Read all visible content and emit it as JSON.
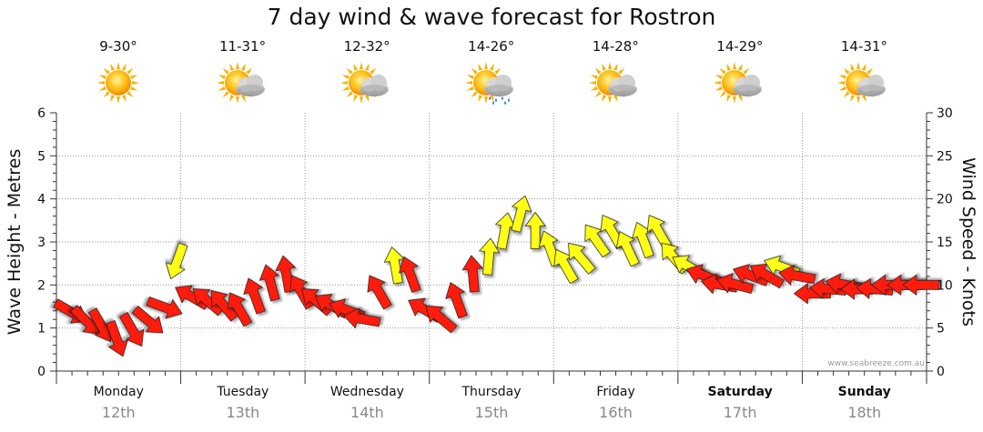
{
  "chart_data": {
    "type": "line",
    "title": "7 day wind & wave forecast for Rostron",
    "ylabel_left": "Wave Height - Metres",
    "ylabel_right": "Wind Speed - Knots",
    "ylim_left": [
      0,
      6
    ],
    "ylim_right": [
      0,
      30
    ],
    "yticks_left": [
      "0",
      "1",
      "2",
      "3",
      "4",
      "5",
      "6"
    ],
    "yticks_right": [
      "0",
      "5",
      "10",
      "15",
      "20",
      "25",
      "30"
    ],
    "grid": true,
    "watermark": "www.seabreeze.com.au",
    "days": [
      {
        "name": "Monday",
        "date": "12th",
        "temp": "9-30°",
        "weather": "sunny-icon",
        "bold": false
      },
      {
        "name": "Tuesday",
        "date": "13th",
        "temp": "11-31°",
        "weather": "partly-cloudy-icon",
        "bold": false
      },
      {
        "name": "Wednesday",
        "date": "14th",
        "temp": "12-32°",
        "weather": "partly-cloudy-icon",
        "bold": false
      },
      {
        "name": "Thursday",
        "date": "15th",
        "temp": "14-26°",
        "weather": "rain-icon",
        "bold": false
      },
      {
        "name": "Friday",
        "date": "16th",
        "temp": "14-28°",
        "weather": "partly-cloudy-icon",
        "bold": false
      },
      {
        "name": "Saturday",
        "date": "17th",
        "temp": "14-29°",
        "weather": "partly-cloudy-icon",
        "bold": true
      },
      {
        "name": "Sunday",
        "date": "18th",
        "temp": "14-31°",
        "weather": "partly-cloudy-icon",
        "bold": true
      }
    ],
    "wind_series": {
      "name": "Wind Speed",
      "x_hours": [
        0,
        3,
        6,
        9,
        12,
        15,
        18,
        21,
        24,
        27,
        30,
        33,
        36,
        39,
        42,
        45,
        48,
        51,
        54,
        57,
        60,
        63,
        66,
        69,
        72,
        75,
        78,
        81,
        84,
        87,
        90,
        93,
        96,
        99,
        102,
        105,
        108,
        111,
        114,
        117,
        120,
        123,
        126,
        129,
        132,
        135,
        138,
        141,
        144,
        147,
        150,
        153,
        156,
        159,
        162,
        165
      ],
      "knots": [
        7,
        6,
        5.5,
        4,
        5,
        6,
        7.5,
        13,
        8.5,
        8,
        7.5,
        7,
        8.5,
        10,
        11,
        9,
        8,
        7.5,
        7,
        6,
        9,
        12,
        11,
        7,
        6,
        8,
        11,
        13,
        16,
        18,
        16,
        14,
        12,
        13,
        15,
        16,
        14,
        15,
        16,
        13,
        12,
        11,
        10,
        10,
        11,
        11,
        12,
        11,
        9,
        9.5,
        10,
        9.5,
        9.5,
        10,
        10,
        10
      ],
      "directions_deg": [
        120,
        135,
        150,
        160,
        150,
        130,
        110,
        200,
        300,
        310,
        320,
        330,
        340,
        345,
        350,
        330,
        310,
        300,
        290,
        280,
        330,
        350,
        340,
        300,
        310,
        340,
        355,
        5,
        10,
        15,
        0,
        340,
        330,
        320,
        325,
        330,
        335,
        340,
        330,
        320,
        300,
        290,
        280,
        285,
        290,
        300,
        290,
        280,
        270,
        275,
        280,
        270,
        275,
        270,
        270,
        270
      ],
      "colors": {
        "low": "#ff1a0d",
        "mid": "#ffff19",
        "high": "#18e61a"
      },
      "thresholds_knots": [
        12,
        19
      ]
    }
  },
  "colors": {
    "axis": "#333333",
    "grid": "#999999",
    "day_sep": "#999999",
    "date_text": "#888888",
    "temp_text": "#111111"
  }
}
